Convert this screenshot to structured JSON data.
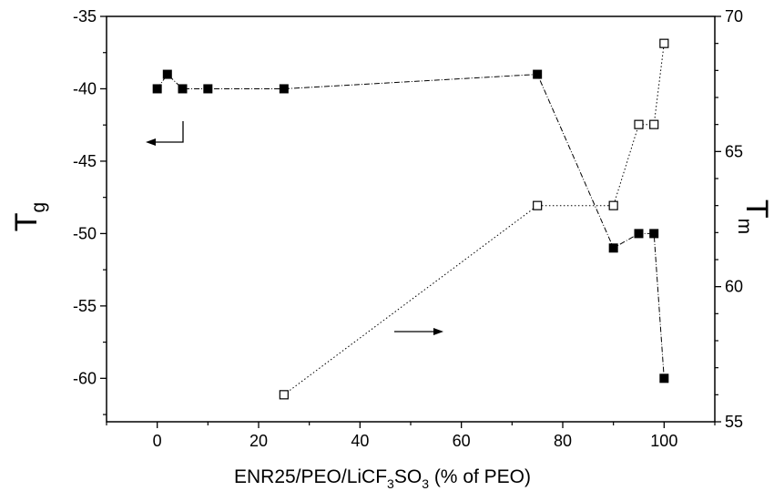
{
  "chart_data": {
    "type": "scatter",
    "title": "",
    "xlabel": "ENR25/PEO/LiCF3SO3 (% of PEO)",
    "xlabel_parts": {
      "p1": "ENR25/PEO/LiCF",
      "sub1": "3",
      "p2": "SO",
      "sub2": "3",
      "p3": " (% of PEO)"
    },
    "ylabel_left": "Tg",
    "ylabel_left_parts": {
      "main": "T",
      "sub": "g"
    },
    "ylabel_right": "Tm",
    "ylabel_right_parts": {
      "main": "T",
      "sub": "m"
    },
    "xlim": [
      -10,
      110
    ],
    "ylim_left": [
      -63,
      -35
    ],
    "ylim_right": [
      55,
      70
    ],
    "x_ticks": [
      0,
      20,
      40,
      60,
      80,
      100
    ],
    "x_tick_labels": [
      "0",
      "20",
      "40",
      "60",
      "80",
      "100"
    ],
    "y_left_ticks": [
      -60,
      -55,
      -50,
      -45,
      -40,
      -35
    ],
    "y_left_tick_labels": [
      "-60",
      "-55",
      "-50",
      "-45",
      "-40",
      "-35"
    ],
    "y_right_ticks": [
      55,
      60,
      65,
      70
    ],
    "y_right_tick_labels": [
      "55",
      "60",
      "65",
      "70"
    ],
    "grid": false,
    "series": [
      {
        "axis": "left",
        "marker": "filled-square",
        "line": "dash-dot",
        "x": [
          0,
          2,
          5,
          10,
          25,
          75,
          90,
          95,
          98,
          100
        ],
        "y": [
          -40,
          -39,
          -40,
          -40,
          -40,
          -39,
          -51,
          -50,
          -50,
          -60
        ]
      },
      {
        "axis": "right",
        "marker": "open-square",
        "line": "dotted",
        "x": [
          25,
          75,
          90,
          95,
          98,
          100
        ],
        "y": [
          56,
          63,
          63,
          66,
          66,
          69
        ]
      }
    ],
    "annotations": [
      {
        "type": "arrow",
        "points_to": "left-axis"
      },
      {
        "type": "arrow",
        "points_to": "right-axis"
      }
    ]
  }
}
